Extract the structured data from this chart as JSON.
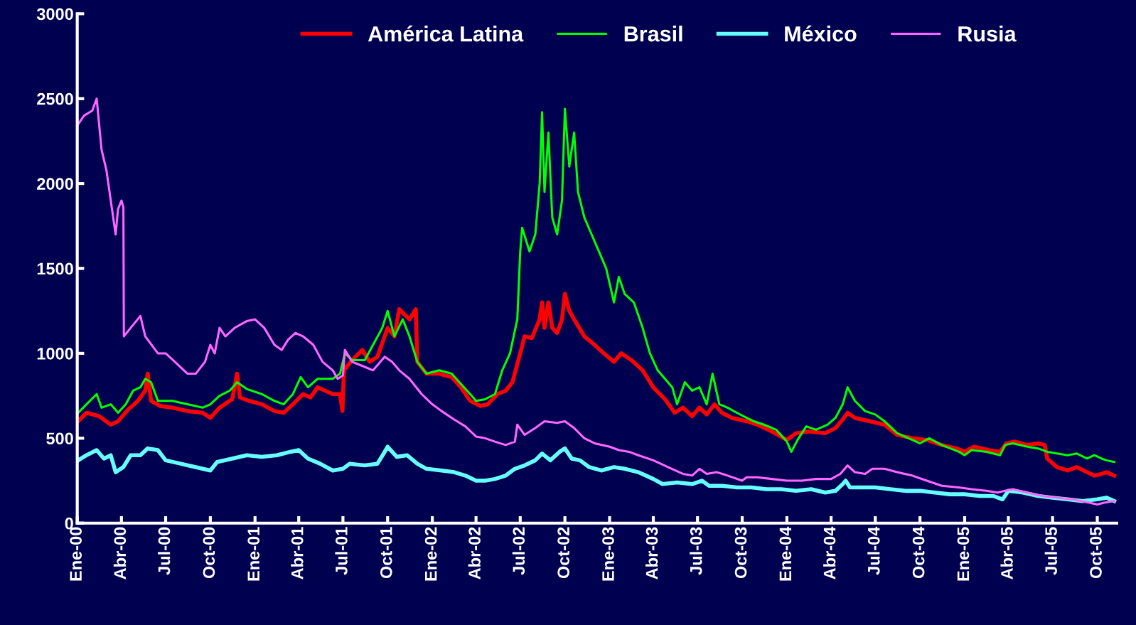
{
  "chart_data": {
    "type": "line",
    "legend": "top",
    "grid": false,
    "marker": "none",
    "line_style": "solid",
    "ylim": [
      0,
      3000
    ],
    "yticks": [
      0,
      500,
      1000,
      1500,
      2000,
      2500,
      3000
    ],
    "xlim": [
      "2000-01-01",
      "2005-11-10"
    ],
    "xticks": [
      {
        "value": "2000-01-01",
        "label": "Ene-00"
      },
      {
        "value": "2000-04-01",
        "label": "Abr-00"
      },
      {
        "value": "2000-07-01",
        "label": "Jul-00"
      },
      {
        "value": "2000-10-01",
        "label": "Oct-00"
      },
      {
        "value": "2001-01-01",
        "label": "Ene-01"
      },
      {
        "value": "2001-04-01",
        "label": "Abr-01"
      },
      {
        "value": "2001-07-01",
        "label": "Jul-01"
      },
      {
        "value": "2001-10-01",
        "label": "Oct-01"
      },
      {
        "value": "2002-01-01",
        "label": "Ene-02"
      },
      {
        "value": "2002-04-01",
        "label": "Abr-02"
      },
      {
        "value": "2002-07-01",
        "label": "Jul-02"
      },
      {
        "value": "2002-10-01",
        "label": "Oct-02"
      },
      {
        "value": "2003-01-01",
        "label": "Ene-03"
      },
      {
        "value": "2003-04-01",
        "label": "Abr-03"
      },
      {
        "value": "2003-07-01",
        "label": "Jul-03"
      },
      {
        "value": "2003-10-01",
        "label": "Oct-03"
      },
      {
        "value": "2004-01-01",
        "label": "Ene-04"
      },
      {
        "value": "2004-04-01",
        "label": "Abr-04"
      },
      {
        "value": "2004-07-01",
        "label": "Jul-04"
      },
      {
        "value": "2004-10-01",
        "label": "Oct-04"
      },
      {
        "value": "2005-01-01",
        "label": "Ene-05"
      },
      {
        "value": "2005-04-01",
        "label": "Abr-05"
      },
      {
        "value": "2005-07-01",
        "label": "Jul-05"
      },
      {
        "value": "2005-10-01",
        "label": "Oct-05"
      }
    ],
    "series": [
      {
        "name": "América Latina",
        "color": "#ff0000",
        "x": [
          "2000-01-03",
          "2000-01-20",
          "2000-02-15",
          "2000-03-10",
          "2000-03-25",
          "2000-04-15",
          "2000-05-05",
          "2000-05-20",
          "2000-05-25",
          "2000-06-01",
          "2000-06-20",
          "2000-07-15",
          "2000-08-15",
          "2000-09-15",
          "2000-10-01",
          "2000-10-20",
          "2000-11-15",
          "2000-11-25",
          "2000-12-01",
          "2000-12-20",
          "2001-01-15",
          "2001-02-10",
          "2001-03-01",
          "2001-03-20",
          "2001-04-10",
          "2001-04-25",
          "2001-05-10",
          "2001-06-10",
          "2001-06-25",
          "2001-06-30",
          "2001-07-03",
          "2001-07-20",
          "2001-08-10",
          "2001-08-25",
          "2001-09-10",
          "2001-10-01",
          "2001-10-15",
          "2001-10-25",
          "2001-11-15",
          "2001-11-28",
          "2001-12-01",
          "2001-12-20",
          "2002-01-15",
          "2002-02-10",
          "2002-03-01",
          "2002-03-20",
          "2002-04-10",
          "2002-04-25",
          "2002-05-15",
          "2002-06-01",
          "2002-06-15",
          "2002-07-01",
          "2002-07-10",
          "2002-07-25",
          "2002-08-10",
          "2002-08-15",
          "2002-08-20",
          "2002-08-28",
          "2002-09-05",
          "2002-09-15",
          "2002-09-25",
          "2002-10-01",
          "2002-10-10",
          "2002-10-20",
          "2002-11-10",
          "2002-12-01",
          "2002-12-20",
          "2003-01-10",
          "2003-01-25",
          "2003-02-15",
          "2003-03-10",
          "2003-04-01",
          "2003-04-25",
          "2003-05-15",
          "2003-06-01",
          "2003-06-20",
          "2003-07-05",
          "2003-07-20",
          "2003-08-05",
          "2003-08-20",
          "2003-09-10",
          "2003-10-10",
          "2003-11-01",
          "2003-12-01",
          "2004-01-01",
          "2004-01-20",
          "2004-02-15",
          "2004-03-20",
          "2004-04-10",
          "2004-04-25",
          "2004-05-05",
          "2004-05-20",
          "2004-06-20",
          "2004-07-20",
          "2004-08-15",
          "2004-09-15",
          "2004-10-15",
          "2004-11-15",
          "2004-12-15",
          "2005-01-01",
          "2005-01-20",
          "2005-02-20",
          "2005-03-15",
          "2005-03-28",
          "2005-04-15",
          "2005-05-10",
          "2005-06-01",
          "2005-06-15",
          "2005-06-20",
          "2005-07-10",
          "2005-08-01",
          "2005-08-20",
          "2005-09-10",
          "2005-09-25",
          "2005-10-10",
          "2005-10-20",
          "2005-11-05"
        ],
        "values": [
          600,
          650,
          630,
          580,
          600,
          670,
          720,
          780,
          880,
          720,
          690,
          680,
          660,
          650,
          620,
          680,
          730,
          880,
          740,
          720,
          700,
          660,
          650,
          700,
          760,
          740,
          800,
          760,
          760,
          660,
          900,
          960,
          1020,
          950,
          980,
          1150,
          1100,
          1260,
          1200,
          1260,
          950,
          880,
          880,
          860,
          800,
          720,
          690,
          700,
          760,
          780,
          830,
          1000,
          1100,
          1090,
          1200,
          1300,
          1150,
          1300,
          1150,
          1120,
          1200,
          1350,
          1250,
          1200,
          1100,
          1050,
          1000,
          950,
          1000,
          960,
          900,
          800,
          730,
          650,
          680,
          630,
          680,
          640,
          700,
          650,
          620,
          600,
          580,
          540,
          490,
          530,
          540,
          530,
          560,
          610,
          650,
          620,
          600,
          580,
          520,
          500,
          490,
          460,
          440,
          420,
          450,
          430,
          420,
          470,
          480,
          460,
          470,
          460,
          380,
          330,
          310,
          330,
          300,
          280,
          290,
          300,
          280
        ]
      },
      {
        "name": "Brasil",
        "color": "#00ff00",
        "x": [
          "2000-01-03",
          "2000-01-20",
          "2000-02-10",
          "2000-02-20",
          "2000-03-10",
          "2000-03-25",
          "2000-04-10",
          "2000-04-25",
          "2000-05-10",
          "2000-05-20",
          "2000-06-01",
          "2000-06-15",
          "2000-07-15",
          "2000-08-15",
          "2000-09-15",
          "2000-10-01",
          "2000-10-20",
          "2000-11-10",
          "2000-11-25",
          "2000-12-15",
          "2001-01-15",
          "2001-02-10",
          "2001-03-01",
          "2001-03-20",
          "2001-04-05",
          "2001-04-20",
          "2001-05-10",
          "2001-06-10",
          "2001-06-25",
          "2001-07-05",
          "2001-07-20",
          "2001-08-15",
          "2001-09-01",
          "2001-09-20",
          "2001-10-01",
          "2001-10-15",
          "2001-11-01",
          "2001-11-15",
          "2001-12-01",
          "2001-12-20",
          "2002-01-15",
          "2002-02-10",
          "2002-03-01",
          "2002-03-20",
          "2002-04-01",
          "2002-04-20",
          "2002-05-10",
          "2002-05-25",
          "2002-06-10",
          "2002-06-25",
          "2002-07-01",
          "2002-07-05",
          "2002-07-20",
          "2002-08-01",
          "2002-08-10",
          "2002-08-15",
          "2002-08-20",
          "2002-08-28",
          "2002-09-05",
          "2002-09-15",
          "2002-09-25",
          "2002-10-01",
          "2002-10-10",
          "2002-10-20",
          "2002-10-28",
          "2002-11-10",
          "2002-11-25",
          "2002-12-10",
          "2002-12-25",
          "2003-01-10",
          "2003-01-20",
          "2003-02-01",
          "2003-02-20",
          "2003-03-10",
          "2003-03-25",
          "2003-04-10",
          "2003-04-25",
          "2003-05-10",
          "2003-05-20",
          "2003-06-05",
          "2003-06-20",
          "2003-07-05",
          "2003-07-20",
          "2003-08-01",
          "2003-08-15",
          "2003-09-01",
          "2003-09-20",
          "2003-10-10",
          "2003-10-25",
          "2003-11-15",
          "2003-12-10",
          "2004-01-01",
          "2004-01-10",
          "2004-01-25",
          "2004-02-10",
          "2004-03-01",
          "2004-03-25",
          "2004-04-10",
          "2004-04-25",
          "2004-05-05",
          "2004-05-20",
          "2004-06-10",
          "2004-07-01",
          "2004-07-20",
          "2004-08-15",
          "2004-09-15",
          "2004-10-01",
          "2004-10-20",
          "2004-11-15",
          "2004-12-20",
          "2005-01-01",
          "2005-01-15",
          "2005-02-15",
          "2005-03-15",
          "2005-03-25",
          "2005-04-10",
          "2005-05-10",
          "2005-06-01",
          "2005-06-20",
          "2005-07-10",
          "2005-08-01",
          "2005-08-20",
          "2005-09-10",
          "2005-09-25",
          "2005-10-10",
          "2005-10-20",
          "2005-11-05"
        ],
        "values": [
          650,
          700,
          760,
          680,
          700,
          650,
          700,
          780,
          800,
          850,
          830,
          720,
          720,
          700,
          680,
          700,
          750,
          780,
          830,
          790,
          760,
          720,
          700,
          760,
          860,
          800,
          850,
          850,
          880,
          1000,
          960,
          960,
          1050,
          1150,
          1250,
          1100,
          1200,
          1100,
          950,
          880,
          900,
          880,
          820,
          760,
          720,
          730,
          760,
          900,
          1000,
          1200,
          1600,
          1740,
          1600,
          1700,
          2000,
          2420,
          1950,
          2300,
          1800,
          1700,
          1900,
          2440,
          2100,
          2300,
          1950,
          1800,
          1700,
          1600,
          1500,
          1300,
          1450,
          1350,
          1300,
          1150,
          1000,
          900,
          850,
          800,
          700,
          830,
          780,
          800,
          700,
          880,
          700,
          680,
          650,
          620,
          600,
          580,
          550,
          480,
          420,
          500,
          570,
          550,
          580,
          620,
          700,
          800,
          720,
          660,
          640,
          600,
          530,
          490,
          470,
          500,
          460,
          420,
          400,
          430,
          420,
          400,
          460,
          470,
          450,
          440,
          420,
          410,
          400,
          410,
          380,
          400,
          380,
          370,
          360
        ]
      },
      {
        "name": "México",
        "color": "#66ffff",
        "x": [
          "2000-01-03",
          "2000-01-20",
          "2000-02-10",
          "2000-02-25",
          "2000-03-10",
          "2000-03-20",
          "2000-04-05",
          "2000-04-20",
          "2000-05-10",
          "2000-05-25",
          "2000-06-15",
          "2000-07-01",
          "2000-08-01",
          "2000-09-01",
          "2000-10-01",
          "2000-10-15",
          "2000-11-15",
          "2000-12-15",
          "2001-01-15",
          "2001-02-15",
          "2001-03-15",
          "2001-04-01",
          "2001-04-20",
          "2001-05-15",
          "2001-06-10",
          "2001-07-01",
          "2001-07-15",
          "2001-08-15",
          "2001-09-10",
          "2001-09-25",
          "2001-10-01",
          "2001-10-20",
          "2001-11-10",
          "2001-12-01",
          "2001-12-20",
          "2002-01-20",
          "2002-02-15",
          "2002-03-10",
          "2002-04-01",
          "2002-04-20",
          "2002-05-10",
          "2002-06-01",
          "2002-06-20",
          "2002-07-10",
          "2002-08-01",
          "2002-08-15",
          "2002-09-01",
          "2002-09-20",
          "2002-10-01",
          "2002-10-15",
          "2002-11-01",
          "2002-11-20",
          "2002-12-15",
          "2003-01-10",
          "2003-02-01",
          "2003-03-01",
          "2003-04-01",
          "2003-04-20",
          "2003-05-20",
          "2003-06-20",
          "2003-07-10",
          "2003-07-25",
          "2003-08-20",
          "2003-09-20",
          "2003-10-20",
          "2003-11-20",
          "2003-12-20",
          "2004-01-20",
          "2004-02-20",
          "2004-03-20",
          "2004-04-10",
          "2004-04-25",
          "2004-05-01",
          "2004-05-10",
          "2004-06-01",
          "2004-07-01",
          "2004-08-01",
          "2004-09-01",
          "2004-10-01",
          "2004-11-01",
          "2004-12-01",
          "2005-01-01",
          "2005-02-01",
          "2005-03-01",
          "2005-03-20",
          "2005-04-01",
          "2005-05-01",
          "2005-06-01",
          "2005-07-01",
          "2005-08-01",
          "2005-09-01",
          "2005-10-01",
          "2005-10-20",
          "2005-11-05"
        ],
        "values": [
          370,
          400,
          430,
          380,
          400,
          300,
          330,
          400,
          400,
          440,
          430,
          370,
          350,
          330,
          310,
          360,
          380,
          400,
          390,
          400,
          420,
          430,
          380,
          350,
          310,
          320,
          350,
          340,
          350,
          420,
          450,
          390,
          400,
          350,
          320,
          310,
          300,
          280,
          250,
          250,
          260,
          280,
          320,
          340,
          370,
          410,
          370,
          420,
          440,
          380,
          370,
          330,
          310,
          330,
          320,
          300,
          260,
          230,
          240,
          230,
          250,
          220,
          220,
          210,
          210,
          200,
          200,
          190,
          200,
          180,
          190,
          230,
          250,
          210,
          210,
          210,
          200,
          190,
          190,
          180,
          170,
          170,
          160,
          160,
          140,
          190,
          180,
          160,
          150,
          140,
          130,
          140,
          150,
          130
        ]
      },
      {
        "name": "Rusia",
        "color": "#ff66ff",
        "x": [
          "2000-01-03",
          "2000-01-15",
          "2000-02-01",
          "2000-02-10",
          "2000-02-20",
          "2000-03-01",
          "2000-03-10",
          "2000-03-20",
          "2000-03-25",
          "2000-04-01",
          "2000-04-05",
          "2000-04-06",
          "2000-04-20",
          "2000-05-10",
          "2000-05-20",
          "2000-06-15",
          "2000-07-01",
          "2000-07-20",
          "2000-08-15",
          "2000-09-01",
          "2000-09-20",
          "2000-10-01",
          "2000-10-10",
          "2000-10-20",
          "2000-11-01",
          "2000-11-20",
          "2000-12-15",
          "2001-01-01",
          "2001-01-20",
          "2001-02-10",
          "2001-02-25",
          "2001-03-10",
          "2001-03-25",
          "2001-04-10",
          "2001-05-01",
          "2001-05-20",
          "2001-06-10",
          "2001-06-20",
          "2001-07-01",
          "2001-07-05",
          "2001-07-20",
          "2001-08-15",
          "2001-09-01",
          "2001-09-25",
          "2001-10-10",
          "2001-10-25",
          "2001-11-15",
          "2001-12-10",
          "2002-01-01",
          "2002-01-20",
          "2002-02-15",
          "2002-03-10",
          "2002-04-01",
          "2002-04-20",
          "2002-05-10",
          "2002-06-01",
          "2002-06-20",
          "2002-06-25",
          "2002-07-10",
          "2002-08-01",
          "2002-08-20",
          "2002-09-15",
          "2002-10-01",
          "2002-10-20",
          "2002-11-10",
          "2002-12-01",
          "2003-01-01",
          "2003-01-20",
          "2003-02-10",
          "2003-03-01",
          "2003-04-01",
          "2003-05-01",
          "2003-06-01",
          "2003-06-20",
          "2003-07-05",
          "2003-07-20",
          "2003-08-10",
          "2003-09-01",
          "2003-10-01",
          "2003-10-10",
          "2003-11-01",
          "2003-12-01",
          "2004-01-01",
          "2004-02-01",
          "2004-03-01",
          "2004-04-01",
          "2004-04-20",
          "2004-05-05",
          "2004-05-20",
          "2004-06-10",
          "2004-06-25",
          "2004-07-20",
          "2004-08-15",
          "2004-09-15",
          "2004-10-15",
          "2004-11-15",
          "2004-12-20",
          "2005-01-15",
          "2005-02-15",
          "2005-03-10",
          "2005-03-25",
          "2005-04-10",
          "2005-05-10",
          "2005-06-10",
          "2005-07-10",
          "2005-08-10",
          "2005-09-15",
          "2005-10-01",
          "2005-10-15",
          "2005-11-05"
        ],
        "values": [
          2350,
          2400,
          2430,
          2500,
          2200,
          2080,
          1900,
          1700,
          1850,
          1900,
          1860,
          1100,
          1150,
          1220,
          1100,
          1000,
          1000,
          950,
          880,
          880,
          950,
          1050,
          1000,
          1150,
          1100,
          1150,
          1190,
          1200,
          1150,
          1050,
          1020,
          1080,
          1120,
          1100,
          1050,
          950,
          900,
          850,
          870,
          1020,
          950,
          920,
          900,
          980,
          950,
          900,
          850,
          760,
          700,
          660,
          610,
          570,
          510,
          500,
          480,
          460,
          480,
          580,
          520,
          560,
          600,
          590,
          600,
          560,
          500,
          470,
          450,
          430,
          420,
          400,
          370,
          330,
          290,
          280,
          320,
          290,
          300,
          280,
          250,
          270,
          270,
          260,
          250,
          250,
          260,
          260,
          290,
          340,
          300,
          290,
          320,
          320,
          300,
          280,
          250,
          220,
          210,
          200,
          190,
          180,
          190,
          200,
          180,
          160,
          150,
          140,
          120,
          110,
          120,
          130
        ]
      }
    ]
  }
}
